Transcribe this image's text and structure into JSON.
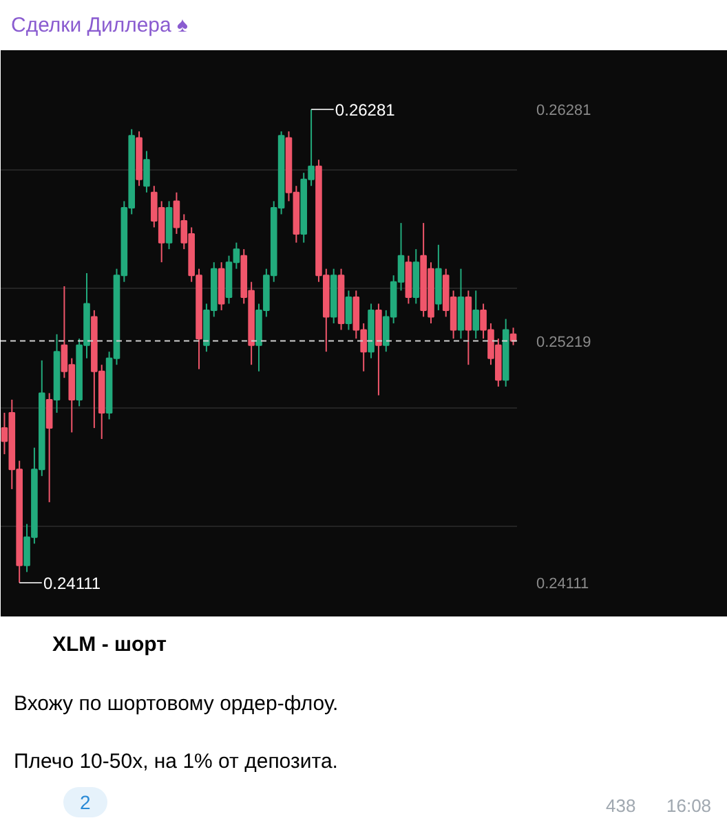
{
  "chart_data": {
    "type": "candlestick",
    "title": "Сделки Диллера ♠",
    "subtitle": "XLM - шорт",
    "categories": [
      null,
      null,
      null,
      null,
      null,
      null,
      null,
      null,
      null,
      null,
      null,
      null,
      null,
      null,
      null,
      null,
      null,
      null,
      null,
      null,
      null,
      null,
      null,
      null,
      null,
      null,
      null,
      null,
      null,
      null,
      null,
      null,
      null,
      null,
      null,
      null,
      null,
      null,
      null,
      null,
      null,
      null,
      null,
      null,
      null,
      null,
      null,
      null,
      null,
      null,
      null,
      null,
      null,
      null,
      null,
      null,
      null,
      null,
      null,
      null,
      null,
      null,
      null,
      null,
      null,
      null,
      null,
      null,
      null
    ],
    "ohlc": [
      [
        0.2482,
        0.2489,
        0.247,
        0.2476
      ],
      [
        0.2489,
        0.2495,
        0.2454,
        0.2463
      ],
      [
        0.2463,
        0.2467,
        0.24111,
        0.2419
      ],
      [
        0.2419,
        0.2438,
        0.2416,
        0.2432
      ],
      [
        0.2432,
        0.2473,
        0.2429,
        0.2463
      ],
      [
        0.2463,
        0.2513,
        0.246,
        0.2498
      ],
      [
        0.2495,
        0.2498,
        0.2448,
        0.2482
      ],
      [
        0.2495,
        0.2525,
        0.2489,
        0.2517
      ],
      [
        0.252,
        0.2547,
        0.2505,
        0.2508
      ],
      [
        0.2511,
        0.2514,
        0.248,
        0.2495
      ],
      [
        0.2495,
        0.2523,
        0.2492,
        0.252
      ],
      [
        0.252,
        0.2553,
        0.2514,
        0.2539
      ],
      [
        0.2533,
        0.2536,
        0.2482,
        0.2508
      ],
      [
        0.2508,
        0.2511,
        0.2477,
        0.2489
      ],
      [
        0.2489,
        0.2517,
        0.2486,
        0.2514
      ],
      [
        0.2514,
        0.2555,
        0.2511,
        0.2552
      ],
      [
        0.2552,
        0.2586,
        0.2549,
        0.2583
      ],
      [
        0.2583,
        0.2619,
        0.258,
        0.2616
      ],
      [
        0.2615,
        0.2618,
        0.2593,
        0.2596
      ],
      [
        0.2593,
        0.2609,
        0.259,
        0.2605
      ],
      [
        0.259,
        0.2593,
        0.2574,
        0.2577
      ],
      [
        0.2583,
        0.2586,
        0.2558,
        0.2567
      ],
      [
        0.2567,
        0.2586,
        0.2564,
        0.2583
      ],
      [
        0.2586,
        0.259,
        0.2571,
        0.2574
      ],
      [
        0.2577,
        0.258,
        0.2564,
        0.2567
      ],
      [
        0.2571,
        0.2574,
        0.2549,
        0.2552
      ],
      [
        0.2552,
        0.2555,
        0.2509,
        0.2523
      ],
      [
        0.252,
        0.2539,
        0.2517,
        0.2536
      ],
      [
        0.2536,
        0.2558,
        0.2533,
        0.2555
      ],
      [
        0.2555,
        0.2558,
        0.2536,
        0.2539
      ],
      [
        0.2542,
        0.2561,
        0.2539,
        0.2558
      ],
      [
        0.2558,
        0.2567,
        0.2555,
        0.2564
      ],
      [
        0.2561,
        0.2564,
        0.2539,
        0.2542
      ],
      [
        0.2545,
        0.2549,
        0.2511,
        0.252
      ],
      [
        0.252,
        0.2539,
        0.2508,
        0.2536
      ],
      [
        0.2536,
        0.2555,
        0.2533,
        0.2552
      ],
      [
        0.2552,
        0.2586,
        0.2549,
        0.2583
      ],
      [
        0.2583,
        0.2618,
        0.258,
        0.2616
      ],
      [
        0.2615,
        0.2618,
        0.2586,
        0.259
      ],
      [
        0.259,
        0.2593,
        0.2567,
        0.2571
      ],
      [
        0.2571,
        0.2599,
        0.2567,
        0.2596
      ],
      [
        0.2596,
        0.26281,
        0.2593,
        0.2602
      ],
      [
        0.2602,
        0.2605,
        0.2549,
        0.2552
      ],
      [
        0.2552,
        0.2555,
        0.2517,
        0.2533
      ],
      [
        0.2533,
        0.2555,
        0.253,
        0.2552
      ],
      [
        0.2552,
        0.2555,
        0.2527,
        0.253
      ],
      [
        0.253,
        0.2545,
        0.2527,
        0.2542
      ],
      [
        0.2542,
        0.2545,
        0.2523,
        0.2527
      ],
      [
        0.2527,
        0.253,
        0.2508,
        0.2517
      ],
      [
        0.2517,
        0.2539,
        0.2514,
        0.2536
      ],
      [
        0.2536,
        0.2539,
        0.2497,
        0.252
      ],
      [
        0.252,
        0.2536,
        0.2517,
        0.2533
      ],
      [
        0.2533,
        0.2552,
        0.253,
        0.2549
      ],
      [
        0.2549,
        0.2576,
        0.2545,
        0.2561
      ],
      [
        0.2558,
        0.2561,
        0.2539,
        0.2542
      ],
      [
        0.2542,
        0.2564,
        0.2539,
        0.2558
      ],
      [
        0.2561,
        0.2576,
        0.2533,
        0.2536
      ],
      [
        0.2555,
        0.2558,
        0.253,
        0.2533
      ],
      [
        0.2539,
        0.2566,
        0.2536,
        0.2555
      ],
      [
        0.2552,
        0.2555,
        0.2533,
        0.2536
      ],
      [
        0.2542,
        0.2545,
        0.2523,
        0.2527
      ],
      [
        0.2527,
        0.2555,
        0.2523,
        0.2542
      ],
      [
        0.2542,
        0.2545,
        0.2511,
        0.2527
      ],
      [
        0.2527,
        0.2545,
        0.2523,
        0.2536
      ],
      [
        0.2536,
        0.2539,
        0.2523,
        0.2527
      ],
      [
        0.2527,
        0.253,
        0.2511,
        0.2514
      ],
      [
        0.252,
        0.2523,
        0.2501,
        0.2504
      ],
      [
        0.2504,
        0.2532,
        0.2501,
        0.2527
      ],
      [
        0.2525,
        0.2528,
        0.252,
        0.25219
      ]
    ],
    "colors": [
      "#f0566b",
      "#f0566b",
      "#f0566b",
      "#22ab7d",
      "#22ab7d",
      "#22ab7d",
      "#f0566b",
      "#22ab7d",
      "#f0566b",
      "#f0566b",
      "#22ab7d",
      "#22ab7d",
      "#f0566b",
      "#f0566b",
      "#22ab7d",
      "#22ab7d",
      "#22ab7d",
      "#22ab7d",
      "#f0566b",
      "#22ab7d",
      "#f0566b",
      "#f0566b",
      "#22ab7d",
      "#f0566b",
      "#f0566b",
      "#f0566b",
      "#f0566b",
      "#22ab7d",
      "#22ab7d",
      "#f0566b",
      "#22ab7d",
      "#22ab7d",
      "#f0566b",
      "#f0566b",
      "#22ab7d",
      "#22ab7d",
      "#22ab7d",
      "#22ab7d",
      "#f0566b",
      "#f0566b",
      "#22ab7d",
      "#22ab7d",
      "#f0566b",
      "#f0566b",
      "#22ab7d",
      "#f0566b",
      "#22ab7d",
      "#f0566b",
      "#f0566b",
      "#22ab7d",
      "#f0566b",
      "#22ab7d",
      "#22ab7d",
      "#22ab7d",
      "#f0566b",
      "#22ab7d",
      "#f0566b",
      "#f0566b",
      "#22ab7d",
      "#f0566b",
      "#f0566b",
      "#22ab7d",
      "#f0566b",
      "#22ab7d",
      "#f0566b",
      "#f0566b",
      "#f0566b",
      "#22ab7d",
      "#f0566b"
    ],
    "ylim": [
      0.23953,
      0.26552
    ],
    "yticks": [
      {
        "value": 0.26003,
        "label": null
      },
      {
        "value": 0.25461,
        "label": null
      },
      {
        "value": 0.24912,
        "label": null
      },
      {
        "value": 0.2437,
        "label": null
      },
      0.26281,
      0.24111
    ],
    "tick_labels": "y",
    "grid": "y",
    "ref_lines": [
      {
        "axis": "y",
        "value": 0.25219,
        "label": "0.25219",
        "color": "#d0d0d0",
        "line_style": "dashed"
      }
    ],
    "annotations": [
      "0.26281",
      "0.24111",
      "Вхожу по шортовому ордер-флоу.",
      "Плечо 10-50x, на 1% от депозита.",
      "2",
      "438",
      "16:08"
    ]
  }
}
